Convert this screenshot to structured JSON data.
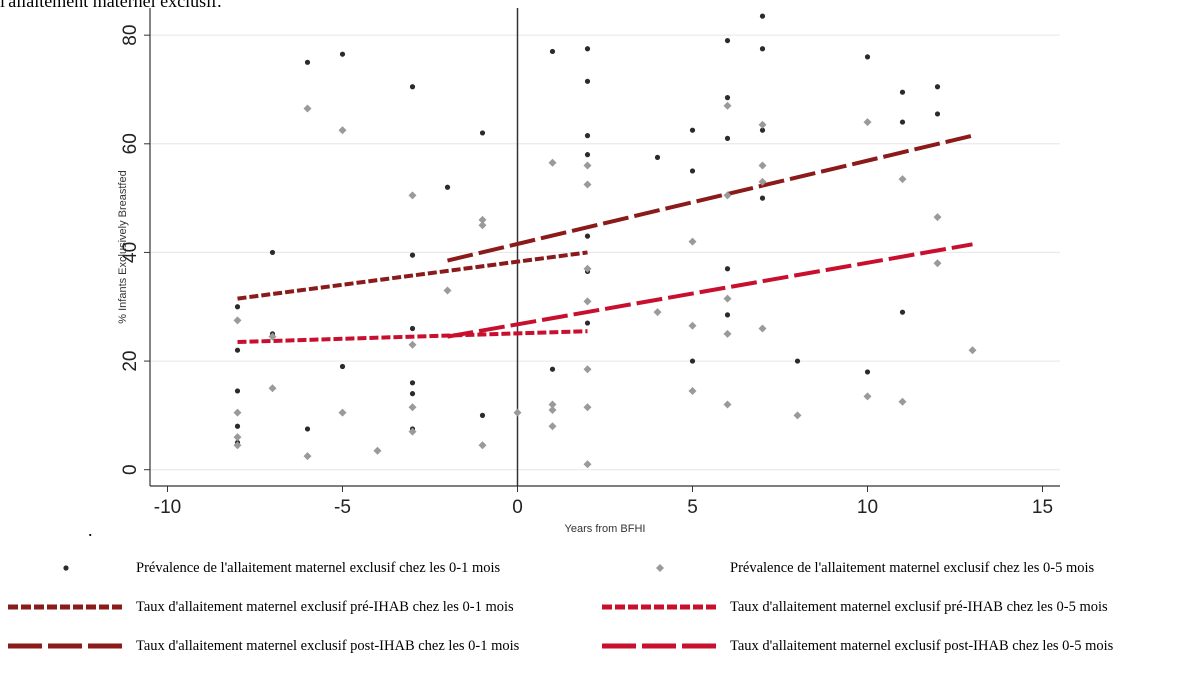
{
  "header": {
    "text": "l'allaitement maternel exclusif."
  },
  "stray_mark": ".",
  "chart_data": {
    "type": "scatter",
    "title": "",
    "xlabel": "Years from BFHI",
    "ylabel": "% Infants Exclusively Breastfed",
    "xlim": [
      -10.5,
      15.5
    ],
    "ylim": [
      -3,
      85
    ],
    "xticks": [
      -10,
      -5,
      0,
      5,
      10,
      15
    ],
    "yticks": [
      0,
      20,
      40,
      60,
      80
    ],
    "grid": true,
    "reference_line_x": 0,
    "colors": {
      "dot01": "#2b2b2b",
      "dot05": "#9a9a9a",
      "line01": "#8b1a1a",
      "line05": "#c8102e",
      "grid": "#e6e6e6"
    },
    "series": [
      {
        "name": "Prévalence de l'allaitement maternel exclusif chez les 0-1 mois",
        "kind": "points",
        "marker": "dot",
        "points": [
          [
            -8,
            30
          ],
          [
            -8,
            22
          ],
          [
            -8,
            14.5
          ],
          [
            -8,
            8
          ],
          [
            -8,
            5
          ],
          [
            -7,
            40
          ],
          [
            -7,
            25
          ],
          [
            -6,
            75
          ],
          [
            -6,
            7.5
          ],
          [
            -5,
            76.5
          ],
          [
            -5,
            19
          ],
          [
            -3,
            70.5
          ],
          [
            -3,
            39.5
          ],
          [
            -3,
            26
          ],
          [
            -3,
            16
          ],
          [
            -3,
            14
          ],
          [
            -3,
            7.5
          ],
          [
            -2,
            52
          ],
          [
            -1,
            62
          ],
          [
            -1,
            10
          ],
          [
            1,
            77
          ],
          [
            1,
            18.5
          ],
          [
            2,
            77.5
          ],
          [
            2,
            71.5
          ],
          [
            2,
            61.5
          ],
          [
            2,
            58
          ],
          [
            2,
            43
          ],
          [
            2,
            36.5
          ],
          [
            2,
            31
          ],
          [
            2,
            27
          ],
          [
            4,
            57.5
          ],
          [
            5,
            62.5
          ],
          [
            5,
            55
          ],
          [
            5,
            20
          ],
          [
            6,
            79
          ],
          [
            6,
            68.5
          ],
          [
            6,
            61
          ],
          [
            6,
            37
          ],
          [
            6,
            28.5
          ],
          [
            7,
            83.5
          ],
          [
            7,
            77.5
          ],
          [
            7,
            62.5
          ],
          [
            7,
            50
          ],
          [
            8,
            20
          ],
          [
            10,
            76
          ],
          [
            10,
            18
          ],
          [
            11,
            69.5
          ],
          [
            11,
            64
          ],
          [
            11,
            29
          ],
          [
            12,
            70.5
          ],
          [
            12,
            65.5
          ]
        ]
      },
      {
        "name": "Prévalence de l'allaitement maternel exclusif chez les 0-5 mois",
        "kind": "points",
        "marker": "diamond",
        "points": [
          [
            -8,
            27.5
          ],
          [
            -8,
            10.5
          ],
          [
            -8,
            6
          ],
          [
            -8,
            4.5
          ],
          [
            -7,
            24.5
          ],
          [
            -7,
            15
          ],
          [
            -6,
            66.5
          ],
          [
            -6,
            2.5
          ],
          [
            -5,
            62.5
          ],
          [
            -5,
            10.5
          ],
          [
            -4,
            3.5
          ],
          [
            -3,
            50.5
          ],
          [
            -3,
            23
          ],
          [
            -3,
            11.5
          ],
          [
            -3,
            7
          ],
          [
            -2,
            33
          ],
          [
            -1,
            46
          ],
          [
            -1,
            45
          ],
          [
            -1,
            4.5
          ],
          [
            0,
            10.5
          ],
          [
            1,
            56.5
          ],
          [
            1,
            12
          ],
          [
            1,
            11
          ],
          [
            1,
            8
          ],
          [
            2,
            56
          ],
          [
            2,
            52.5
          ],
          [
            2,
            37
          ],
          [
            2,
            31
          ],
          [
            2,
            18.5
          ],
          [
            2,
            11.5
          ],
          [
            2,
            1
          ],
          [
            4,
            29
          ],
          [
            5,
            42
          ],
          [
            5,
            26.5
          ],
          [
            5,
            14.5
          ],
          [
            6,
            67
          ],
          [
            6,
            50.5
          ],
          [
            6,
            31.5
          ],
          [
            6,
            25
          ],
          [
            6,
            12
          ],
          [
            7,
            63.5
          ],
          [
            7,
            56
          ],
          [
            7,
            53
          ],
          [
            7,
            26
          ],
          [
            8,
            10
          ],
          [
            10,
            64
          ],
          [
            10,
            13.5
          ],
          [
            11,
            53.5
          ],
          [
            11,
            12.5
          ],
          [
            12,
            46.5
          ],
          [
            12,
            38
          ],
          [
            13,
            22
          ]
        ]
      },
      {
        "name": "Taux d'allaitement maternel exclusif pré-IHAB chez les 0-1 mois",
        "kind": "line",
        "style": "short-dash",
        "points": [
          [
            -8,
            31.5
          ],
          [
            2,
            40
          ]
        ]
      },
      {
        "name": "Taux d'allaitement maternel exclusif pré-IHAB chez les 0-5 mois",
        "kind": "line",
        "style": "short-dash",
        "points": [
          [
            -8,
            23.5
          ],
          [
            2,
            25.5
          ]
        ]
      },
      {
        "name": "Taux d'allaitement maternel exclusif post-IHAB chez les 0-1 mois",
        "kind": "line",
        "style": "long-dash",
        "points": [
          [
            -2,
            38.5
          ],
          [
            13,
            61.5
          ]
        ]
      },
      {
        "name": "Taux d'allaitement maternel exclusif post-IHAB chez les 0-5 mois",
        "kind": "line",
        "style": "long-dash",
        "points": [
          [
            -2,
            24.5
          ],
          [
            13,
            41.5
          ]
        ]
      }
    ]
  },
  "legend": {
    "items": [
      {
        "label": "Prévalence de l'allaitement maternel exclusif chez les 0-1 mois",
        "swatch": "dot"
      },
      {
        "label": "Prévalence de l'allaitement maternel exclusif chez les 0-5 mois",
        "swatch": "diamond"
      },
      {
        "label": "Taux d'allaitement maternel exclusif pré-IHAB chez les 0-1 mois",
        "swatch": "short-dash-dark"
      },
      {
        "label": "Taux d'allaitement maternel exclusif pré-IHAB chez les 0-5 mois",
        "swatch": "short-dash-red"
      },
      {
        "label": "Taux d'allaitement maternel exclusif post-IHAB chez les 0-1 mois",
        "swatch": "long-dash-dark"
      },
      {
        "label": "Taux d'allaitement maternel exclusif post-IHAB chez les 0-5 mois",
        "swatch": "long-dash-red"
      }
    ]
  }
}
